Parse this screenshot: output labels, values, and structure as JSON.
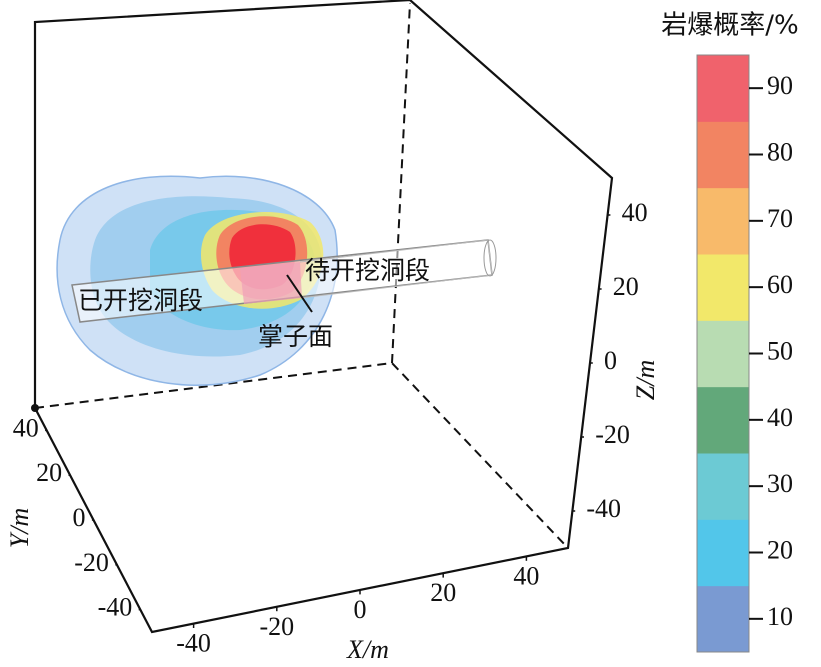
{
  "chart_data": {
    "type": "isosurface3d",
    "x_label": "X/m",
    "y_label": "Y/m",
    "z_label": "Z/m",
    "xlim": [
      -50,
      50
    ],
    "xticks": [
      -40,
      -20,
      0,
      20,
      40
    ],
    "ylim": [
      50,
      -50
    ],
    "yticks": [
      40,
      20,
      0,
      -20,
      -40
    ],
    "zlim": [
      -50,
      50
    ],
    "zticks": [
      -40,
      -20,
      0,
      20,
      40
    ],
    "colorbar": {
      "title": "岩爆概率/%",
      "clim": [
        5,
        95
      ],
      "ticks": [
        10,
        20,
        30,
        40,
        50,
        60,
        70,
        80,
        90
      ],
      "colors": [
        "#7a9ad2",
        "#52c6ea",
        "#6ccad4",
        "#62a87a",
        "#b8dcb2",
        "#f2e86a",
        "#f8ba6a",
        "#f28462",
        "#f0626c"
      ]
    },
    "annotations": [
      "已开挖洞段",
      "待开挖洞段",
      "掌子面"
    ]
  }
}
